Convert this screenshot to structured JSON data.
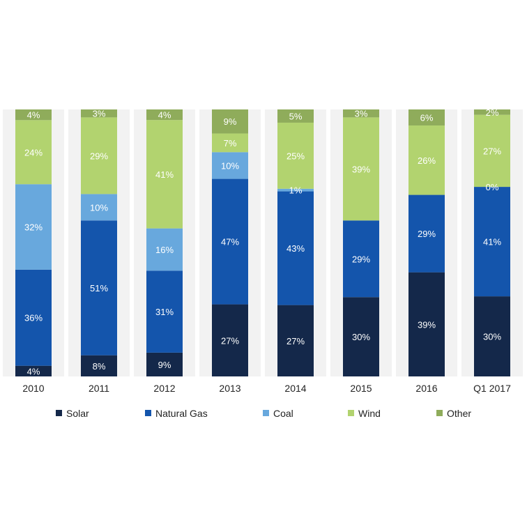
{
  "chart_data": {
    "type": "bar",
    "stacked": true,
    "normalized": true,
    "categories": [
      "2010",
      "2011",
      "2012",
      "2013",
      "2014",
      "2015",
      "2016",
      "Q1 2017"
    ],
    "series": [
      {
        "name": "Solar",
        "color": "#14284a",
        "values": [
          4,
          8,
          9,
          27,
          27,
          30,
          39,
          30
        ]
      },
      {
        "name": "Natural Gas",
        "color": "#1455ac",
        "values": [
          36,
          51,
          31,
          47,
          43,
          29,
          29,
          41
        ]
      },
      {
        "name": "Coal",
        "color": "#68a8dd",
        "values": [
          32,
          10,
          16,
          10,
          1,
          0,
          0,
          0
        ]
      },
      {
        "name": "Wind",
        "color": "#b2d36f",
        "values": [
          24,
          29,
          41,
          7,
          25,
          39,
          26,
          27
        ]
      },
      {
        "name": "Other",
        "color": "#8fac5b",
        "values": [
          4,
          3,
          4,
          9,
          5,
          3,
          6,
          2
        ]
      }
    ],
    "labels": [
      [
        "4%",
        "36%",
        "32%",
        "24%",
        "4%"
      ],
      [
        "8%",
        "51%",
        "10%",
        "29%",
        "3%"
      ],
      [
        "9%",
        "31%",
        "16%",
        "41%",
        "4%"
      ],
      [
        "27%",
        "47%",
        "10%",
        "7%",
        "9%"
      ],
      [
        "27%",
        "43%",
        "1%",
        "25%",
        "5%"
      ],
      [
        "30%",
        "29%",
        null,
        "39%",
        "3%"
      ],
      [
        "39%",
        "29%",
        null,
        "26%",
        "6%"
      ],
      [
        "30%",
        "41%",
        "0%",
        "27%",
        "2%"
      ]
    ],
    "ylim": [
      0,
      100
    ],
    "title": "",
    "xlabel": "",
    "ylabel": "",
    "grid": false,
    "legend_position": "bottom",
    "background_band_color": "#f2f2f2"
  }
}
